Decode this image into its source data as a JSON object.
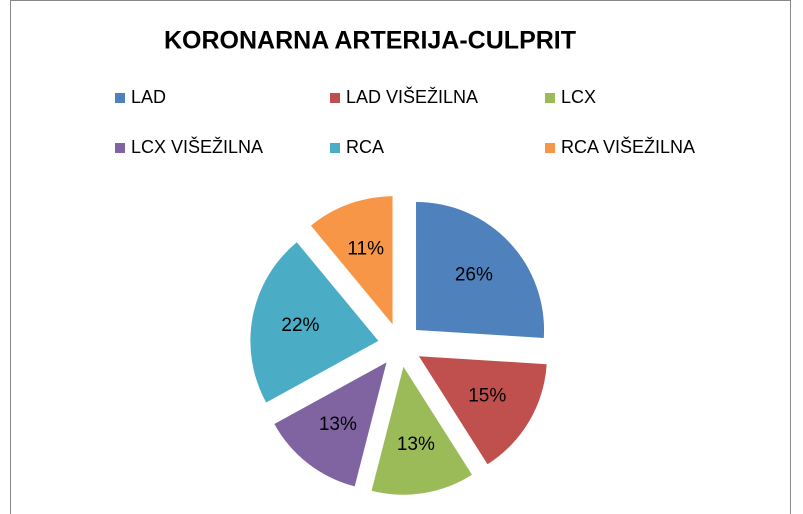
{
  "chart_data": {
    "type": "pie",
    "title": "KORONARNA ARTERIJA-CULPRIT",
    "categories": [
      "LAD",
      "LAD VIŠEŽILNA",
      "LCX",
      "LCX VIŠEŽILNA",
      "RCA",
      "RCA VIŠEŽILNA"
    ],
    "values": [
      26,
      15,
      13,
      13,
      22,
      11
    ],
    "value_labels": [
      "26%",
      "15%",
      "13%",
      "13%",
      "22%",
      "11%"
    ],
    "colors": [
      "#4f81bd",
      "#c0504d",
      "#9bbb59",
      "#8064a2",
      "#4bacc6",
      "#f79646"
    ],
    "legend": "top"
  }
}
